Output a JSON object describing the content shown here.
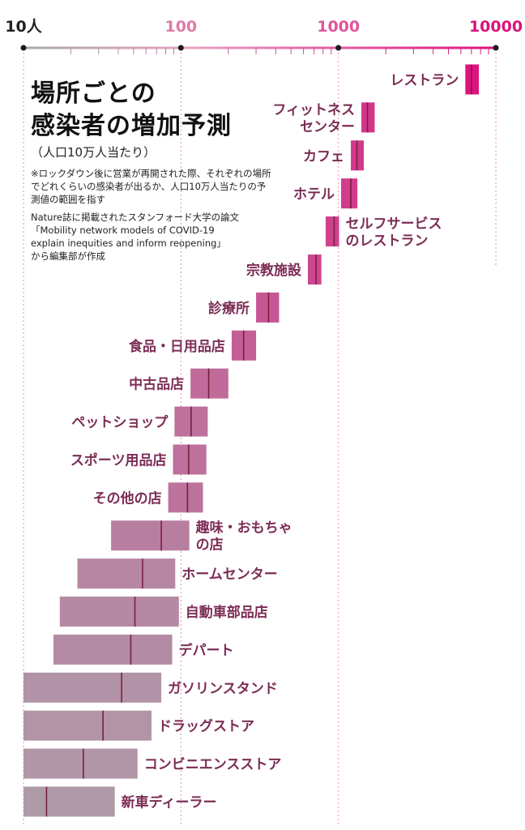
{
  "chart_data": {
    "type": "bar",
    "title_lines": [
      "場所ごとの",
      "感染者の増加予測"
    ],
    "subtitle": "（人口10万人当たり）",
    "note": "※ロックダウン後に営業が再開された際、それぞれの場所でどれくらいの感染者が出るか、人口10万人当たりの予測値の範囲を指す",
    "source_lines": [
      "Nature誌に掲載されたスタンフォード大学の論文",
      "「Mobility network models of COVID-19",
      "explain inequities and inform reopening」",
      "から編集部が作成"
    ],
    "axis": {
      "scale": "log",
      "min": 10,
      "max": 10000,
      "ticks": [
        {
          "value": 10,
          "label": "10人",
          "color": "#222222"
        },
        {
          "value": 100,
          "label": "100",
          "color": "#e07aa6"
        },
        {
          "value": 1000,
          "label": "1000",
          "color": "#e0559a"
        },
        {
          "value": 10000,
          "label": "10000",
          "color": "#d8127c"
        }
      ]
    },
    "categories": [
      "レストラン",
      "フィットネス\nセンター",
      "カフェ",
      "ホテル",
      "セルフサービス\nのレストラン",
      "宗教施設",
      "診療所",
      "食品・日用品店",
      "中古品店",
      "ペットショップ",
      "スポーツ用品店",
      "その他の店",
      "趣味・おもちゃ\nの店",
      "ホームセンター",
      "自動車部品店",
      "デパート",
      "ガソリンスタンド",
      "ドラッグストア",
      "コンビニエンスストア",
      "新車ディーラー"
    ],
    "ranges": [
      [
        6400,
        7800
      ],
      [
        1400,
        1700
      ],
      [
        1200,
        1450
      ],
      [
        1040,
        1320
      ],
      [
        830,
        1010
      ],
      [
        640,
        780
      ],
      [
        300,
        420
      ],
      [
        210,
        300
      ],
      [
        115,
        200
      ],
      [
        91,
        148
      ],
      [
        89,
        145
      ],
      [
        83,
        138
      ],
      [
        36,
        113
      ],
      [
        22,
        92
      ],
      [
        17,
        97
      ],
      [
        15.5,
        88
      ],
      [
        10,
        75
      ],
      [
        10,
        65
      ],
      [
        10,
        53
      ],
      [
        10,
        38
      ]
    ],
    "medians": [
      7000,
      1530,
      1310,
      1200,
      940,
      720,
      360,
      250,
      150,
      116,
      112,
      110,
      75,
      57,
      51,
      48,
      42,
      32,
      24,
      14
    ],
    "label_side": [
      "left",
      "left",
      "left",
      "left",
      "right",
      "left",
      "left",
      "left",
      "left",
      "left",
      "left",
      "left",
      "right",
      "right",
      "right",
      "right",
      "right",
      "right",
      "right",
      "right"
    ],
    "colors": {
      "axis_low": "#a9a9ad",
      "axis_high": "#e0127f",
      "median_line": "#7a1f3f",
      "label_text": "#7c2d55",
      "guide_line": "#e88bb5"
    }
  }
}
